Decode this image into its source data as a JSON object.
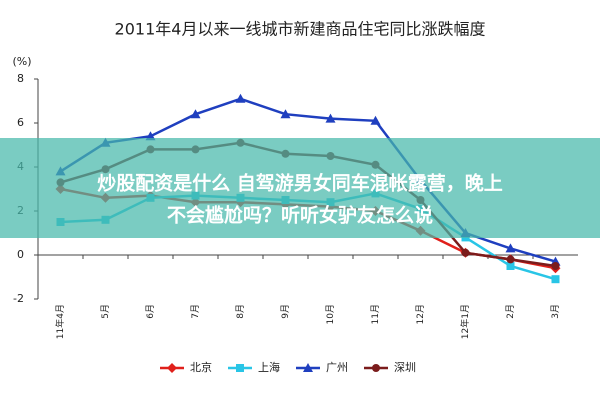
{
  "chart_data": {
    "type": "line",
    "title": "2011年4月以来一线城市新建商品住宅同比涨跌幅度",
    "y_label": "(%)",
    "categories": [
      "11年4月",
      "5月",
      "6月",
      "7月",
      "8月",
      "9月",
      "10月",
      "11月",
      "12月",
      "12年1月",
      "2月",
      "3月"
    ],
    "series": [
      {
        "name": "北京",
        "color": "#e0201b",
        "marker": "diamond",
        "values": [
          3.0,
          2.6,
          2.7,
          2.4,
          2.4,
          2.3,
          2.2,
          2.0,
          1.1,
          0.1,
          -0.2,
          -0.6
        ]
      },
      {
        "name": "上海",
        "color": "#29c5e6",
        "marker": "square",
        "values": [
          1.5,
          1.6,
          2.6,
          2.7,
          2.6,
          2.5,
          2.4,
          2.8,
          2.1,
          0.8,
          -0.5,
          -1.1
        ]
      },
      {
        "name": "广州",
        "color": "#1f3fbf",
        "marker": "triangle",
        "values": [
          3.8,
          5.1,
          5.4,
          6.4,
          7.1,
          6.4,
          6.2,
          6.1,
          3.4,
          1.0,
          0.3,
          -0.3
        ]
      },
      {
        "name": "深圳",
        "color": "#7b1c1c",
        "marker": "circle",
        "values": [
          3.3,
          3.9,
          4.8,
          4.8,
          5.1,
          4.6,
          4.5,
          4.1,
          2.5,
          0.1,
          -0.2,
          -0.5
        ]
      }
    ],
    "ylim": [
      -2,
      8
    ],
    "yticks": [
      -2,
      0,
      2,
      4,
      6,
      8
    ],
    "grid": false
  },
  "overlay": {
    "lines": [
      "炒股配资是什么 自驾游男女同车混帐露营，晚上",
      "不会尴尬吗？听听女驴友怎么说"
    ]
  }
}
